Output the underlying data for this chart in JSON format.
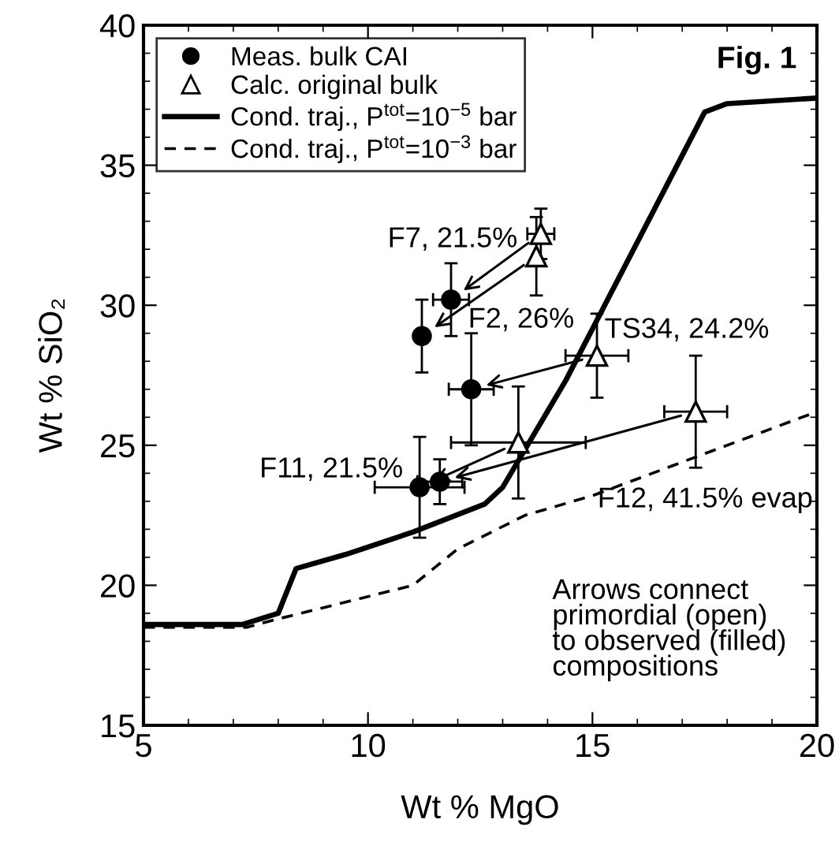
{
  "chart_data": {
    "type": "scatter",
    "xlabel": "Wt % MgO",
    "ylabel": "Wt % SiO₂",
    "xlim": [
      5,
      20
    ],
    "ylim": [
      15,
      40
    ],
    "xticks": [
      5,
      10,
      15,
      20
    ],
    "yticks": [
      15,
      20,
      25,
      30,
      35,
      40
    ],
    "grid": false,
    "legend": "top left",
    "series": [
      {
        "name": "Meas. bulk CAI",
        "marker": "circle",
        "color": "#000000",
        "x": [
          11.85,
          11.2,
          12.3,
          11.15,
          11.6
        ],
        "values": [
          30.2,
          28.9,
          27.0,
          23.5,
          23.7
        ],
        "errors": [
          1.3,
          1.3,
          2.0,
          1.8,
          0.8
        ],
        "xerrors": [
          0.4,
          null,
          0.5,
          1.0,
          0.5
        ]
      },
      {
        "name": "Calc. original bulk",
        "marker": "triangle",
        "color": "#000000",
        "x": [
          13.85,
          13.75,
          15.1,
          13.35,
          17.3
        ],
        "values": [
          32.55,
          31.75,
          28.2,
          25.1,
          26.2
        ],
        "errors": [
          0.9,
          1.4,
          1.5,
          2.0,
          2.0
        ],
        "xerrors": [
          0.3,
          null,
          0.7,
          1.5,
          0.7
        ]
      },
      {
        "name": "Cond. traj., P$^{tot}$=10$^{−5}$ bar",
        "type": "line",
        "line_style": "solid",
        "marker": "none",
        "color": "#000000",
        "x": [
          5,
          7.2,
          8,
          8.4,
          9.5,
          11,
          12.6,
          13,
          14.4,
          17.5,
          18,
          20
        ],
        "values": [
          18.6,
          18.6,
          19.0,
          20.6,
          21.1,
          21.9,
          22.9,
          23.5,
          27.3,
          36.9,
          37.2,
          37.4
        ]
      },
      {
        "name": "Cond. traj., P$^{tot}$=10$^{−3}$ bar",
        "type": "line",
        "line_style": "dashed",
        "marker": "none",
        "color": "#000000",
        "x": [
          5,
          7.3,
          8,
          11,
          12,
          13.5,
          15,
          17,
          20
        ],
        "values": [
          18.5,
          18.5,
          18.8,
          20.0,
          21.3,
          22.5,
          23.2,
          24.4,
          26.2
        ]
      }
    ],
    "annotations": [
      {
        "text": "F7, 21.5%",
        "x": 11.85,
        "y": 30.2
      },
      {
        "text": "F2, 26%",
        "x": 11.2,
        "y": 28.9
      },
      {
        "text": "TS34, 24.2%",
        "x": 15.1,
        "y": 28.2
      },
      {
        "text": "F11, 21.5%",
        "x": 11.15,
        "y": 23.5
      },
      {
        "text": "F12, 41.5% evap",
        "x": 17.3,
        "y": 26.2
      },
      "Fig. 1",
      "Arrows connect\nprimordial (open)\nto observed (filled)\ncompositions"
    ]
  }
}
